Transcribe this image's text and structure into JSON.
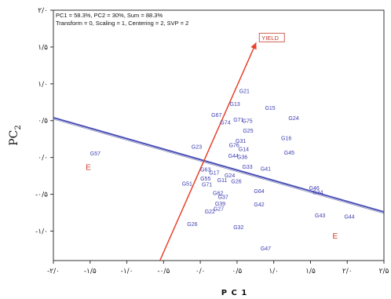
{
  "chart_data": {
    "type": "scatter",
    "xlabel": "PC1",
    "ylabel_main": "PC",
    "ylabel_sub": "2",
    "xlim": [
      -2.0,
      2.0
    ],
    "ylim": [
      -1.4,
      2.0
    ],
    "info_lines": [
      "PC1 = 58.3%, PC2 = 30%, Sum = 88.3%",
      "Transform = 0, Scaling = 1, Centering = 2, SVP = 2"
    ],
    "x_ticks": [
      {
        "value": -2.0,
        "label": "-۲/۰"
      },
      {
        "value": -1.5,
        "label": "-۱/۵"
      },
      {
        "value": -1.0,
        "label": "-۱/۰"
      },
      {
        "value": -0.5,
        "label": "-۰/۵"
      },
      {
        "value": 0.0,
        "label": "۰/۰"
      },
      {
        "value": 0.5,
        "label": "۰/۵"
      },
      {
        "value": 1.0,
        "label": "۱/۰"
      },
      {
        "value": 1.5,
        "label": "۱/۵"
      },
      {
        "value": 2.0,
        "label": "۲/۰"
      },
      {
        "value": 2.5,
        "label": "۲/۵"
      }
    ],
    "y_ticks": [
      {
        "value": 2.0,
        "label": "۲/۰"
      },
      {
        "value": 1.5,
        "label": "۱/۵"
      },
      {
        "value": 1.0,
        "label": "۱/۰"
      },
      {
        "value": 0.5,
        "label": "۰/۵"
      },
      {
        "value": 0.0,
        "label": "۰/۰"
      },
      {
        "value": -0.5,
        "label": "-۰/۵"
      },
      {
        "value": -1.0,
        "label": "-۱/۰"
      }
    ],
    "vector": {
      "label": "YIELD",
      "from": [
        -0.55,
        -1.4
      ],
      "to": [
        0.76,
        1.56
      ],
      "color": "#e8412c"
    },
    "aec_line": {
      "from": [
        -2.0,
        0.54
      ],
      "to": [
        2.5,
        -0.74
      ],
      "color": "#4a4fb5"
    },
    "env_labels": [
      {
        "text": "E",
        "x": -1.56,
        "y": -0.17
      },
      {
        "text": "E",
        "x": 1.8,
        "y": -1.1
      }
    ],
    "genotypes": [
      {
        "name": "G21",
        "x": 0.53,
        "y": 0.91
      },
      {
        "name": "G13",
        "x": 0.4,
        "y": 0.73
      },
      {
        "name": "G15",
        "x": 0.88,
        "y": 0.68
      },
      {
        "name": "G24",
        "x": 1.2,
        "y": 0.54
      },
      {
        "name": "G67",
        "x": 0.15,
        "y": 0.58
      },
      {
        "name": "G74",
        "x": 0.27,
        "y": 0.48
      },
      {
        "name": "G71",
        "x": 0.45,
        "y": 0.52
      },
      {
        "name": "G75",
        "x": 0.57,
        "y": 0.5
      },
      {
        "name": "G25",
        "x": 0.58,
        "y": 0.37
      },
      {
        "name": "G31",
        "x": 0.48,
        "y": 0.23
      },
      {
        "name": "G16",
        "x": 1.1,
        "y": 0.27
      },
      {
        "name": "G76",
        "x": 0.39,
        "y": 0.17
      },
      {
        "name": "G14",
        "x": 0.52,
        "y": 0.12
      },
      {
        "name": "G23",
        "x": -0.12,
        "y": 0.15
      },
      {
        "name": "G45",
        "x": 1.14,
        "y": 0.07
      },
      {
        "name": "G36",
        "x": 0.5,
        "y": 0.01
      },
      {
        "name": "G44",
        "x": 0.38,
        "y": 0.03
      },
      {
        "name": "G57",
        "x": -1.5,
        "y": 0.06
      },
      {
        "name": "G33",
        "x": 0.57,
        "y": -0.12
      },
      {
        "name": "G41",
        "x": 0.82,
        "y": -0.15
      },
      {
        "name": "G63",
        "x": 0.0,
        "y": -0.16
      },
      {
        "name": "G17",
        "x": 0.12,
        "y": -0.2
      },
      {
        "name": "G24b",
        "display": "G24",
        "x": 0.33,
        "y": -0.24
      },
      {
        "name": "G26",
        "x": 0.42,
        "y": -0.32
      },
      {
        "name": "G55",
        "x": 0.0,
        "y": -0.28
      },
      {
        "name": "G11",
        "x": 0.23,
        "y": -0.3
      },
      {
        "name": "G71b",
        "display": "G71",
        "x": 0.02,
        "y": -0.36
      },
      {
        "name": "G51",
        "x": -0.25,
        "y": -0.35
      },
      {
        "name": "G46",
        "x": 1.48,
        "y": -0.41
      },
      {
        "name": "G34",
        "x": 1.53,
        "y": -0.47
      },
      {
        "name": "G64",
        "x": 0.73,
        "y": -0.45
      },
      {
        "name": "G62",
        "x": 0.17,
        "y": -0.48
      },
      {
        "name": "G37",
        "x": 0.24,
        "y": -0.53
      },
      {
        "name": "G42",
        "x": 0.73,
        "y": -0.63
      },
      {
        "name": "G39",
        "x": 0.2,
        "y": -0.62
      },
      {
        "name": "G27",
        "x": 0.18,
        "y": -0.69
      },
      {
        "name": "G22",
        "x": 0.06,
        "y": -0.73
      },
      {
        "name": "G43",
        "x": 1.56,
        "y": -0.78
      },
      {
        "name": "G44b",
        "display": "G44",
        "x": 1.96,
        "y": -0.8
      },
      {
        "name": "G26b",
        "display": "G26",
        "x": -0.18,
        "y": -0.9
      },
      {
        "name": "G32",
        "x": 0.45,
        "y": -0.94
      },
      {
        "name": "G47",
        "x": 0.82,
        "y": -1.23
      }
    ]
  }
}
